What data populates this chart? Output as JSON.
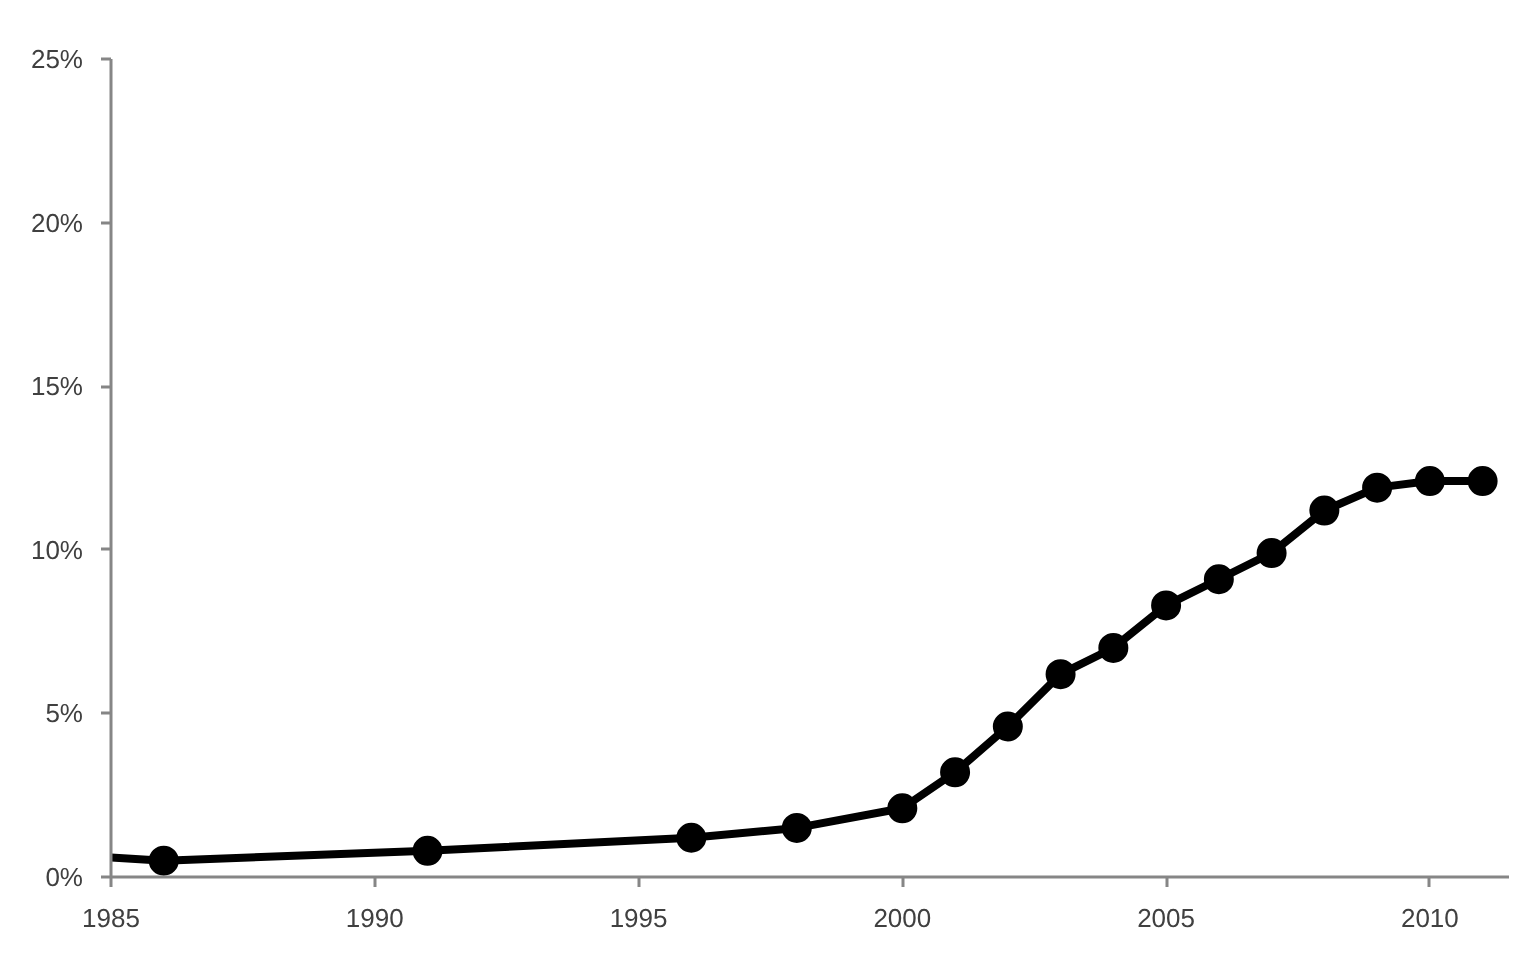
{
  "chart_data": {
    "type": "line",
    "marker": "circle",
    "line_style": "solid",
    "grid": false,
    "xlim": [
      1985,
      2011.5
    ],
    "xticks": [
      1985,
      1990,
      1995,
      2000,
      2005,
      2010
    ],
    "ylim": [
      0,
      25
    ],
    "yticks": [
      {
        "value": 0,
        "label": "0%"
      },
      {
        "value": 5,
        "label": "5%"
      },
      {
        "value": 10,
        "label": "10%"
      },
      {
        "value": 15,
        "label": "15%"
      },
      {
        "value": 20,
        "label": "20%"
      },
      {
        "value": 25,
        "label": "25%"
      }
    ],
    "series": [
      {
        "marker": "none",
        "color": "#000000",
        "x": [
          1985,
          1986,
          1991,
          1996,
          1998,
          2000,
          2001,
          2002,
          2003,
          2004,
          2005,
          2006,
          2007,
          2008,
          2009,
          2010,
          2011
        ],
        "values": [
          0.6,
          0.5,
          0.8,
          1.2,
          1.5,
          2.1,
          3.2,
          4.6,
          6.2,
          7.0,
          8.3,
          9.1,
          9.9,
          11.2,
          11.9,
          12.1,
          12.1
        ]
      },
      {
        "type": "scatter",
        "color": "#000000",
        "x": [
          1986,
          1991,
          1996,
          1998,
          2000,
          2001,
          2002,
          2003,
          2004,
          2005,
          2006,
          2007,
          2008,
          2009,
          2010,
          2011
        ],
        "values": [
          0.5,
          0.8,
          1.2,
          1.5,
          2.1,
          3.2,
          4.6,
          6.2,
          7.0,
          8.3,
          9.1,
          9.9,
          11.2,
          11.9,
          12.1,
          12.1
        ]
      }
    ]
  }
}
